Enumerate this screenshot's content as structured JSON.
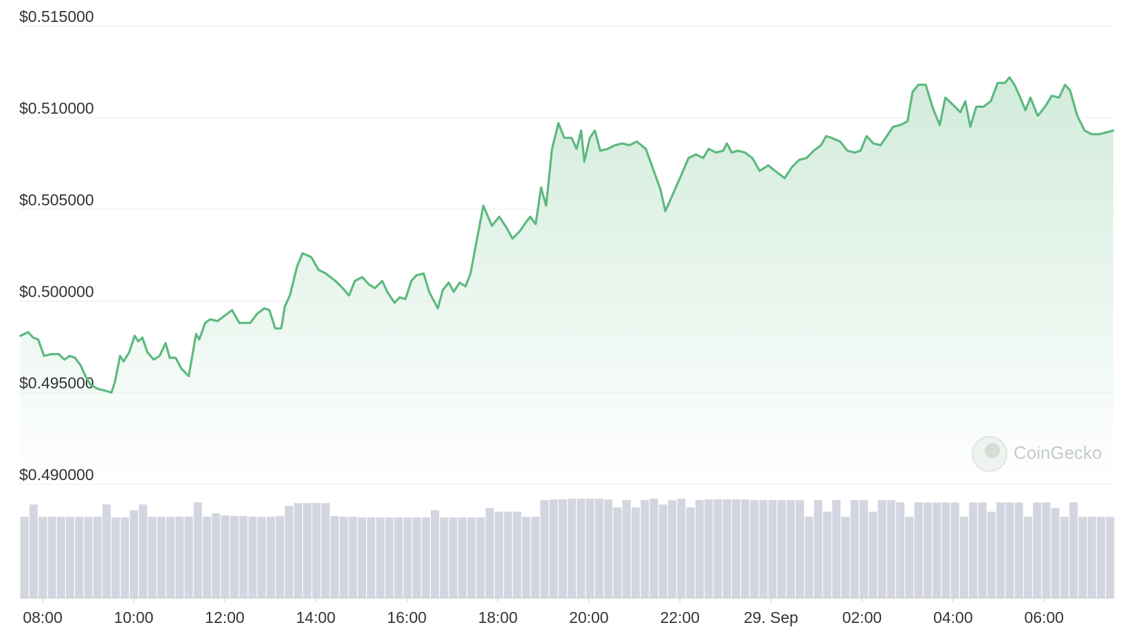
{
  "chart_data": {
    "type": "line",
    "color": "#5cb97e",
    "grid": true,
    "watermark": "CoinGecko",
    "x": [
      7.51,
      7.68,
      7.79,
      7.9,
      8.03,
      8.19,
      8.35,
      8.48,
      8.59,
      8.71,
      8.83,
      8.94,
      9.06,
      9.22,
      9.38,
      9.51,
      9.59,
      9.7,
      9.78,
      9.9,
      10.02,
      10.1,
      10.19,
      10.3,
      10.44,
      10.57,
      10.7,
      10.79,
      10.92,
      11.05,
      11.21,
      11.37,
      11.44,
      11.57,
      11.68,
      11.84,
      12.0,
      12.16,
      12.32,
      12.56,
      12.71,
      12.87,
      12.98,
      13.11,
      13.24,
      13.32,
      13.43,
      13.59,
      13.71,
      13.9,
      14.06,
      14.22,
      14.43,
      14.59,
      14.73,
      14.86,
      15.02,
      15.17,
      15.3,
      15.46,
      15.57,
      15.73,
      15.84,
      15.97,
      16.1,
      16.21,
      16.37,
      16.49,
      16.68,
      16.79,
      16.92,
      17.03,
      17.16,
      17.29,
      17.4,
      17.52,
      17.68,
      17.87,
      18.03,
      18.19,
      18.32,
      18.48,
      18.59,
      18.71,
      18.83,
      18.95,
      19.06,
      19.19,
      19.33,
      19.46,
      19.62,
      19.73,
      19.83,
      19.9,
      20.02,
      20.13,
      20.25,
      20.41,
      20.57,
      20.73,
      20.89,
      21.05,
      21.25,
      21.44,
      21.57,
      21.68,
      21.84,
      22.0,
      22.19,
      22.35,
      22.51,
      22.63,
      22.79,
      22.95,
      23.03,
      23.14,
      23.27,
      23.43,
      23.59,
      23.75,
      23.94,
      24.14,
      24.3,
      24.46,
      24.62,
      24.78,
      24.94,
      25.1,
      25.21,
      25.33,
      25.52,
      25.68,
      25.84,
      25.97,
      26.1,
      26.25,
      26.41,
      26.52,
      26.68,
      26.84,
      27.0,
      27.11,
      27.24,
      27.4,
      27.56,
      27.71,
      27.83,
      28.0,
      28.16,
      28.27,
      28.38,
      28.51,
      28.67,
      28.83,
      28.98,
      29.14,
      29.24,
      29.35,
      29.46,
      29.59,
      29.7,
      29.86,
      30.02,
      30.17,
      30.33,
      30.46,
      30.57,
      30.73,
      30.89,
      31.05,
      31.21,
      31.37,
      31.52
    ],
    "values": [
      0.4981,
      0.4983,
      0.498,
      0.4979,
      0.497,
      0.4971,
      0.4971,
      0.4968,
      0.497,
      0.4969,
      0.4965,
      0.4959,
      0.4954,
      0.4952,
      0.4951,
      0.495,
      0.4956,
      0.497,
      0.4967,
      0.4972,
      0.4981,
      0.4978,
      0.498,
      0.4972,
      0.4968,
      0.497,
      0.4977,
      0.4969,
      0.4969,
      0.4963,
      0.4959,
      0.4982,
      0.4979,
      0.4988,
      0.499,
      0.4989,
      0.4992,
      0.4995,
      0.4988,
      0.4988,
      0.4993,
      0.4996,
      0.4995,
      0.4985,
      0.4985,
      0.4997,
      0.5003,
      0.5019,
      0.5026,
      0.5024,
      0.5017,
      0.5015,
      0.5011,
      0.5007,
      0.5003,
      0.5011,
      0.5013,
      0.5009,
      0.5007,
      0.5011,
      0.5005,
      0.4999,
      0.5002,
      0.5001,
      0.5011,
      0.5014,
      0.5015,
      0.5005,
      0.4996,
      0.5006,
      0.501,
      0.5005,
      0.501,
      0.5008,
      0.5015,
      0.5031,
      0.5052,
      0.5041,
      0.5046,
      0.504,
      0.5034,
      0.5038,
      0.5042,
      0.5046,
      0.5042,
      0.5062,
      0.5052,
      0.5083,
      0.5097,
      0.5089,
      0.5089,
      0.5083,
      0.5093,
      0.5076,
      0.5089,
      0.5093,
      0.5082,
      0.5083,
      0.5085,
      0.5086,
      0.5085,
      0.5087,
      0.5083,
      0.507,
      0.5061,
      0.5049,
      0.5058,
      0.5067,
      0.5078,
      0.508,
      0.5078,
      0.5083,
      0.5081,
      0.5082,
      0.5086,
      0.5081,
      0.5082,
      0.5081,
      0.5078,
      0.5071,
      0.5074,
      0.507,
      0.5067,
      0.5073,
      0.5077,
      0.5078,
      0.5082,
      0.5085,
      0.509,
      0.5089,
      0.5087,
      0.5082,
      0.5081,
      0.5082,
      0.509,
      0.5086,
      0.5085,
      0.5089,
      0.5095,
      0.5096,
      0.5098,
      0.5114,
      0.5118,
      0.5118,
      0.5105,
      0.5096,
      0.5111,
      0.5107,
      0.5103,
      0.5109,
      0.5095,
      0.5106,
      0.5106,
      0.5109,
      0.5119,
      0.5119,
      0.5122,
      0.5118,
      0.5112,
      0.5104,
      0.5111,
      0.5101,
      0.5106,
      0.5112,
      0.5111,
      0.5118,
      0.5115,
      0.5101,
      0.5093,
      0.5091,
      0.5091,
      0.5092,
      0.5093
    ],
    "xlim": [
      7.5,
      31.55
    ],
    "xticks": [
      {
        "value": 8,
        "label": "08:00"
      },
      {
        "value": 10,
        "label": "10:00"
      },
      {
        "value": 12,
        "label": "12:00"
      },
      {
        "value": 14,
        "label": "14:00"
      },
      {
        "value": 16,
        "label": "16:00"
      },
      {
        "value": 18,
        "label": "18:00"
      },
      {
        "value": 20,
        "label": "20:00"
      },
      {
        "value": 22,
        "label": "22:00"
      },
      {
        "value": 24,
        "label": "29. Sep"
      },
      {
        "value": 26,
        "label": "02:00"
      },
      {
        "value": 28,
        "label": "04:00"
      },
      {
        "value": 30,
        "label": "06:00"
      }
    ],
    "ylim": [
      0.49,
      0.515
    ],
    "yticks": [
      {
        "value": 0.49,
        "label": "$0.490000"
      },
      {
        "value": 0.495,
        "label": "$0.495000"
      },
      {
        "value": 0.5,
        "label": "$0.500000"
      },
      {
        "value": 0.505,
        "label": "$0.505000"
      },
      {
        "value": 0.51,
        "label": "$0.510000"
      },
      {
        "value": 0.515,
        "label": "$0.515000"
      }
    ],
    "volume": {
      "color": "#d3d6e0",
      "ylim": [
        0,
        140
      ],
      "values": [
        113,
        130,
        113,
        113,
        113,
        113,
        113,
        113,
        113,
        130,
        112,
        112,
        122,
        130,
        113,
        113,
        113,
        113,
        113,
        133,
        113,
        118,
        115,
        114,
        114,
        113,
        113,
        113,
        114,
        128,
        132,
        132,
        132,
        132,
        114,
        113,
        113,
        112,
        112,
        112,
        112,
        112,
        112,
        112,
        112,
        122,
        112,
        112,
        112,
        112,
        112,
        125,
        120,
        120,
        120,
        113,
        113,
        136,
        137,
        137,
        138,
        138,
        138,
        138,
        137,
        126,
        136,
        126,
        136,
        138,
        130,
        136,
        138,
        126,
        136,
        137,
        137,
        137,
        137,
        137,
        136,
        136,
        136,
        136,
        136,
        136,
        113,
        136,
        120,
        136,
        113,
        136,
        136,
        120,
        136,
        136,
        133,
        113,
        133,
        133,
        133,
        133,
        133,
        113,
        133,
        133,
        120,
        133,
        133,
        133,
        113,
        133,
        133,
        125,
        113,
        133,
        113,
        113,
        113,
        113
      ]
    }
  }
}
